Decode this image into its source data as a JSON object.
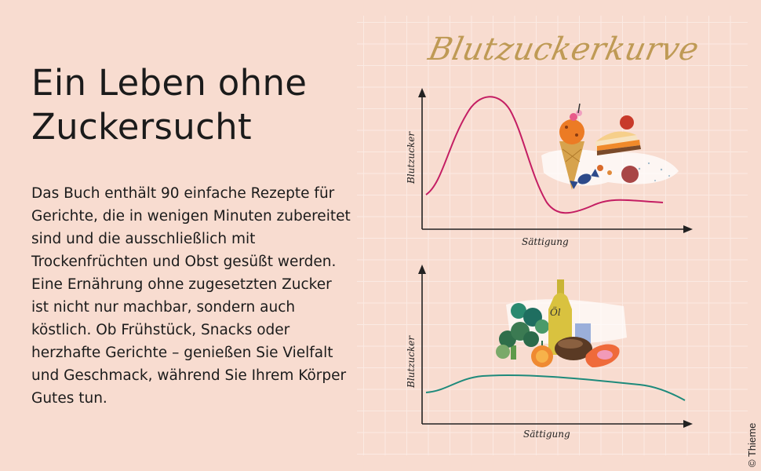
{
  "headline": {
    "line1": "Ein Leben ohne",
    "line2": "Zuckersucht"
  },
  "description": {
    "paragraph1": "Das Buch enthält 90 einfache Rezepte für Gerichte, die in wenigen Minuten zubereitet sind und die ausschließlich mit Trockenfrüchten und Obst gesüßt werden.",
    "paragraph2": "Eine Ernährung ohne zugesetzten Zucker ist nicht nur machbar, sondern auch köstlich. Ob Frühstück, Snacks oder herzhafte Gerichte – genießen Sie Vielfalt und Geschmack, während Sie Ihrem Körper Gutes tun."
  },
  "illustration": {
    "title": "Blutzuckerkurve",
    "top_chart": {
      "y_label": "Blutzucker",
      "x_label": "Sättigung"
    },
    "bottom_chart": {
      "y_label": "Blutzucker",
      "x_label": "Sättigung"
    },
    "bottle_label": "Öl"
  },
  "credit": "© Thieme",
  "colors": {
    "background": "#f8dcd0",
    "grid": "#fbeae3",
    "title_gold": "#bf9a55",
    "sugar_curve": "#c41e63",
    "healthy_curve": "#1e8a7b"
  }
}
